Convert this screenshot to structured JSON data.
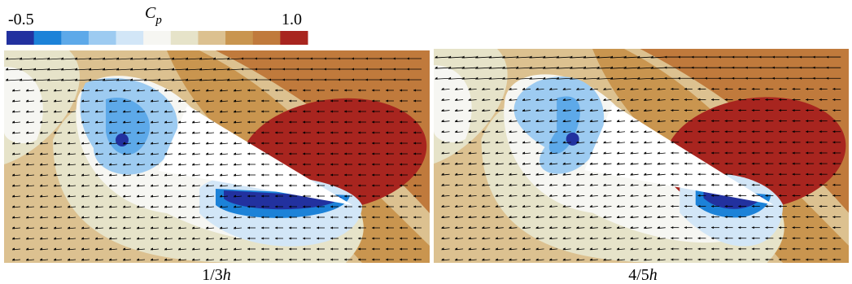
{
  "colorbar": {
    "symbol": "C",
    "subscript": "p",
    "min_label": "-0.5",
    "max_label": "1.0",
    "colors": [
      "#22319f",
      "#1c82d8",
      "#5da9e9",
      "#9dcbf1",
      "#d2e6f7",
      "#f6f6f2",
      "#e6e3c9",
      "#dcc190",
      "#c9954f",
      "#c07a3c",
      "#a8251f"
    ]
  },
  "panels": [
    {
      "fraction": "1/3",
      "unit": "h"
    },
    {
      "fraction": "4/5",
      "unit": "h"
    }
  ]
}
